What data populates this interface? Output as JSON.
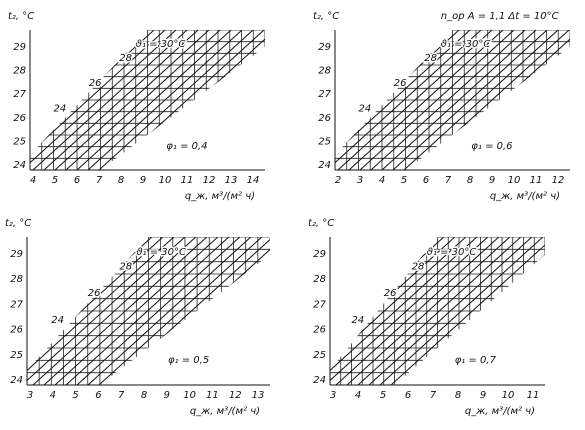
{
  "panels": [
    {
      "y_label": "t₂, °C",
      "x_label": "q_ж, м³/(м² ч)",
      "x_ticks": [
        4,
        5,
        6,
        7,
        8,
        9,
        10,
        11,
        12,
        13,
        14
      ],
      "y_ticks": [
        24,
        25,
        26,
        27,
        28,
        29
      ],
      "curve_labels": [
        "ϑ₁ = 30°C",
        "28",
        "26",
        "24"
      ],
      "parameter": "φ₁ = 0,4"
    },
    {
      "y_label": "t₂, °C",
      "x_label": "q_ж, м³/(м² ч)",
      "x_ticks": [
        2,
        3,
        4,
        5,
        6,
        7,
        8,
        9,
        10,
        11,
        12
      ],
      "y_ticks": [
        24,
        25,
        26,
        27,
        28,
        29
      ],
      "curve_labels": [
        "ϑ₁ = 30°C",
        "28",
        "26",
        "24"
      ],
      "parameter": "φ₁ = 0,6",
      "note": "n_ор A = 1,1   Δt = 10°C"
    },
    {
      "y_label": "t₂, °C",
      "x_label": "q_ж, м³/(м² ч)",
      "x_ticks": [
        3,
        4,
        5,
        6,
        7,
        8,
        9,
        10,
        11,
        12,
        13
      ],
      "y_ticks": [
        24,
        25,
        26,
        27,
        28,
        29
      ],
      "curve_labels": [
        "ϑ₁ = 30°C",
        "28",
        "26",
        "24"
      ],
      "parameter": "φ₁ = 0,5"
    },
    {
      "y_label": "t₂, °C",
      "x_label": "q_ж, м³/(м² ч)",
      "x_ticks": [
        3,
        4,
        5,
        6,
        7,
        8,
        9,
        10,
        11
      ],
      "y_ticks": [
        24,
        25,
        26,
        27,
        28,
        29
      ],
      "curve_labels": [
        "ϑ₁ = 30°C",
        "28",
        "26",
        "24"
      ],
      "parameter": "φ₁ = 0,7"
    }
  ]
}
